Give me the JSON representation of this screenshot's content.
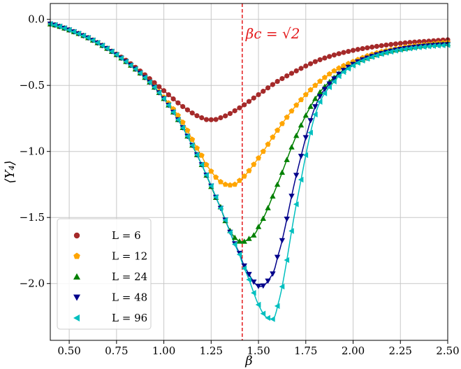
{
  "chart_data": {
    "type": "line",
    "xlabel": "β",
    "ylabel": "⟨Υ₄⟩",
    "xlim": [
      0.4,
      2.5
    ],
    "ylim": [
      -2.43,
      0.12
    ],
    "grid": true,
    "legend_position": "bottom-left",
    "xticks": [
      0.5,
      0.75,
      1.0,
      1.25,
      1.5,
      1.75,
      2.0,
      2.25,
      2.5
    ],
    "xtick_labels": [
      "0.50",
      "0.75",
      "1.00",
      "1.25",
      "1.50",
      "1.75",
      "2.00",
      "2.25",
      "2.50"
    ],
    "yticks": [
      0.0,
      -0.5,
      -1.0,
      -1.5,
      -2.0
    ],
    "ytick_labels": [
      "0.0",
      "−0.5",
      "−1.0",
      "−1.5",
      "−2.0"
    ],
    "annotation": {
      "text": "βc = √2",
      "x": 1.4142,
      "color": "#e41a1c"
    },
    "series": [
      {
        "name": "L = 6",
        "color": "#a52a2a",
        "marker": "circle",
        "points": [
          [
            0.4,
            -0.035
          ],
          [
            0.5,
            -0.08
          ],
          [
            0.6,
            -0.14
          ],
          [
            0.7,
            -0.22
          ],
          [
            0.8,
            -0.31
          ],
          [
            0.9,
            -0.42
          ],
          [
            1.0,
            -0.54
          ],
          [
            1.1,
            -0.66
          ],
          [
            1.2,
            -0.745
          ],
          [
            1.25,
            -0.76
          ],
          [
            1.3,
            -0.745
          ],
          [
            1.4,
            -0.67
          ],
          [
            1.5,
            -0.57
          ],
          [
            1.6,
            -0.47
          ],
          [
            1.7,
            -0.39
          ],
          [
            1.8,
            -0.32
          ],
          [
            1.9,
            -0.27
          ],
          [
            2.0,
            -0.235
          ],
          [
            2.1,
            -0.21
          ],
          [
            2.2,
            -0.19
          ],
          [
            2.3,
            -0.175
          ],
          [
            2.4,
            -0.165
          ],
          [
            2.5,
            -0.155
          ]
        ]
      },
      {
        "name": "L = 12",
        "color": "#ffa500",
        "marker": "pentagon",
        "points": [
          [
            0.4,
            -0.035
          ],
          [
            0.5,
            -0.08
          ],
          [
            0.6,
            -0.14
          ],
          [
            0.7,
            -0.22
          ],
          [
            0.8,
            -0.32
          ],
          [
            0.9,
            -0.44
          ],
          [
            1.0,
            -0.59
          ],
          [
            1.1,
            -0.78
          ],
          [
            1.2,
            -1.03
          ],
          [
            1.25,
            -1.15
          ],
          [
            1.3,
            -1.23
          ],
          [
            1.35,
            -1.255
          ],
          [
            1.4,
            -1.22
          ],
          [
            1.5,
            -1.05
          ],
          [
            1.6,
            -0.84
          ],
          [
            1.7,
            -0.65
          ],
          [
            1.8,
            -0.5
          ],
          [
            1.9,
            -0.39
          ],
          [
            2.0,
            -0.32
          ],
          [
            2.1,
            -0.265
          ],
          [
            2.2,
            -0.23
          ],
          [
            2.3,
            -0.205
          ],
          [
            2.4,
            -0.19
          ],
          [
            2.5,
            -0.175
          ]
        ]
      },
      {
        "name": "L = 24",
        "color": "#008000",
        "marker": "triangle-up",
        "points": [
          [
            0.4,
            -0.035
          ],
          [
            0.5,
            -0.08
          ],
          [
            0.6,
            -0.14
          ],
          [
            0.7,
            -0.22
          ],
          [
            0.8,
            -0.32
          ],
          [
            0.9,
            -0.44
          ],
          [
            1.0,
            -0.6
          ],
          [
            1.1,
            -0.82
          ],
          [
            1.2,
            -1.1
          ],
          [
            1.3,
            -1.42
          ],
          [
            1.35,
            -1.6
          ],
          [
            1.4,
            -1.68
          ],
          [
            1.45,
            -1.66
          ],
          [
            1.5,
            -1.57
          ],
          [
            1.6,
            -1.25
          ],
          [
            1.7,
            -0.88
          ],
          [
            1.8,
            -0.6
          ],
          [
            1.9,
            -0.44
          ],
          [
            2.0,
            -0.34
          ],
          [
            2.1,
            -0.28
          ],
          [
            2.2,
            -0.24
          ],
          [
            2.3,
            -0.215
          ],
          [
            2.4,
            -0.195
          ],
          [
            2.5,
            -0.185
          ]
        ]
      },
      {
        "name": "L = 48",
        "color": "#00008b",
        "marker": "triangle-down",
        "points": [
          [
            0.4,
            -0.035
          ],
          [
            0.5,
            -0.08
          ],
          [
            0.6,
            -0.14
          ],
          [
            0.7,
            -0.22
          ],
          [
            0.8,
            -0.32
          ],
          [
            0.9,
            -0.44
          ],
          [
            1.0,
            -0.6
          ],
          [
            1.1,
            -0.82
          ],
          [
            1.2,
            -1.1
          ],
          [
            1.3,
            -1.43
          ],
          [
            1.4,
            -1.77
          ],
          [
            1.45,
            -1.93
          ],
          [
            1.5,
            -2.02
          ],
          [
            1.55,
            -1.98
          ],
          [
            1.6,
            -1.8
          ],
          [
            1.7,
            -1.18
          ],
          [
            1.8,
            -0.66
          ],
          [
            1.9,
            -0.45
          ],
          [
            2.0,
            -0.34
          ],
          [
            2.1,
            -0.28
          ],
          [
            2.2,
            -0.24
          ],
          [
            2.3,
            -0.215
          ],
          [
            2.4,
            -0.2
          ],
          [
            2.5,
            -0.19
          ]
        ]
      },
      {
        "name": "L = 96",
        "color": "#00bfbf",
        "marker": "triangle-left",
        "points": [
          [
            0.4,
            -0.035
          ],
          [
            0.5,
            -0.08
          ],
          [
            0.6,
            -0.14
          ],
          [
            0.7,
            -0.22
          ],
          [
            0.8,
            -0.32
          ],
          [
            0.9,
            -0.44
          ],
          [
            1.0,
            -0.6
          ],
          [
            1.1,
            -0.82
          ],
          [
            1.2,
            -1.1
          ],
          [
            1.3,
            -1.43
          ],
          [
            1.4,
            -1.78
          ],
          [
            1.45,
            -1.97
          ],
          [
            1.5,
            -2.16
          ],
          [
            1.55,
            -2.26
          ],
          [
            1.6,
            -2.17
          ],
          [
            1.7,
            -1.4
          ],
          [
            1.8,
            -0.72
          ],
          [
            1.9,
            -0.47
          ],
          [
            2.0,
            -0.35
          ],
          [
            2.1,
            -0.285
          ],
          [
            2.2,
            -0.245
          ],
          [
            2.3,
            -0.22
          ],
          [
            2.4,
            -0.205
          ],
          [
            2.5,
            -0.195
          ]
        ]
      }
    ]
  }
}
